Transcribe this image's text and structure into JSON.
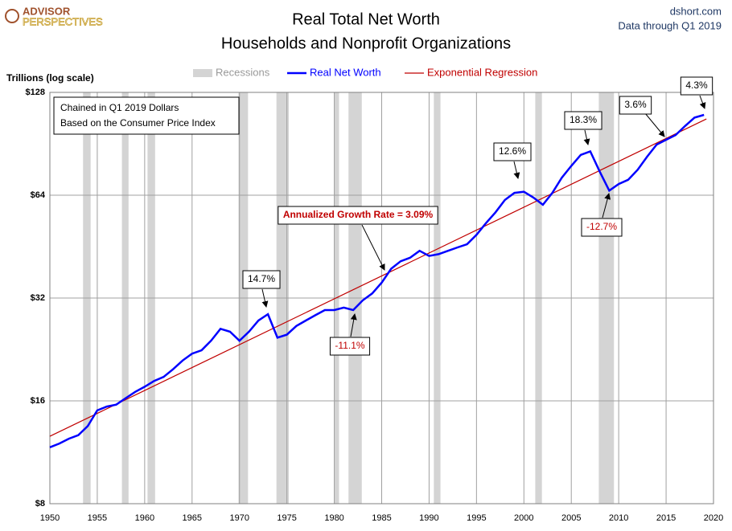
{
  "chart_data": {
    "type": "line",
    "logo": {
      "top": "ADVISOR",
      "bottom": "PERSPECTIVES"
    },
    "source": "dshort.com",
    "data_note": "Data through Q1 2019",
    "title": "Real Total Net Worth",
    "subtitle": "Households and Nonprofit Organizations",
    "y_label": "Trillions (log scale)",
    "note": [
      "Chained in Q1 2019  Dollars",
      "Based on the Consumer Price Index"
    ],
    "log_scale": true,
    "grid": true,
    "xlim": [
      1950,
      2020
    ],
    "xticks": [
      1950,
      1955,
      1960,
      1965,
      1970,
      1975,
      1980,
      1985,
      1990,
      1995,
      2000,
      2005,
      2010,
      2015,
      2020
    ],
    "ylim": [
      8,
      128
    ],
    "yticks": [
      {
        "value": 8,
        "label": "$8"
      },
      {
        "value": 16,
        "label": "$16"
      },
      {
        "value": 32,
        "label": "$32"
      },
      {
        "value": 64,
        "label": "$64"
      },
      {
        "value": 128,
        "label": "$128"
      }
    ],
    "recessions": {
      "name": "Recessions",
      "color": "#d4d4d4",
      "periods": [
        [
          1953.5,
          1954.3
        ],
        [
          1957.6,
          1958.3
        ],
        [
          1960.3,
          1961.1
        ],
        [
          1969.9,
          1970.9
        ],
        [
          1973.9,
          1975.2
        ],
        [
          1980.0,
          1980.5
        ],
        [
          1981.5,
          1982.9
        ],
        [
          1990.5,
          1991.2
        ],
        [
          2001.2,
          2001.9
        ],
        [
          2007.9,
          2009.5
        ]
      ]
    },
    "series": [
      {
        "name": "Real Net Worth",
        "color": "#0000ff",
        "x": [
          1950,
          1951,
          1952,
          1953,
          1954,
          1955,
          1956,
          1957,
          1958,
          1959,
          1960,
          1961,
          1962,
          1963,
          1964,
          1965,
          1966,
          1967,
          1968,
          1969,
          1970,
          1971,
          1972,
          1973,
          1974,
          1975,
          1976,
          1977,
          1978,
          1979,
          1980,
          1981,
          1982,
          1983,
          1984,
          1985,
          1986,
          1987,
          1988,
          1989,
          1990,
          1991,
          1992,
          1993,
          1994,
          1995,
          1996,
          1997,
          1998,
          1999,
          2000,
          2001,
          2002,
          2003,
          2004,
          2005,
          2006,
          2007,
          2008,
          2009,
          2010,
          2011,
          2012,
          2013,
          2014,
          2015,
          2016,
          2017,
          2018,
          2019
        ],
        "values": [
          11.7,
          12.0,
          12.4,
          12.7,
          13.5,
          15.0,
          15.4,
          15.6,
          16.3,
          17.0,
          17.6,
          18.3,
          18.8,
          19.8,
          21.0,
          22.0,
          22.5,
          24.0,
          26.0,
          25.5,
          24.0,
          25.5,
          27.5,
          28.7,
          24.5,
          25.0,
          26.5,
          27.5,
          28.5,
          29.5,
          29.5,
          30.0,
          29.5,
          31.5,
          33.0,
          35.5,
          39.0,
          41.0,
          42.0,
          44.0,
          42.5,
          43.0,
          44.0,
          45.0,
          46.0,
          49.0,
          53.0,
          57.0,
          62.0,
          65.0,
          65.5,
          63.0,
          60.0,
          65.0,
          72.0,
          78.0,
          84.0,
          86.0,
          75.0,
          66.0,
          69.0,
          71.0,
          76.0,
          83.0,
          90.0,
          93.0,
          96.0,
          102.0,
          108.0,
          110.0
        ]
      },
      {
        "name": "Exponential Regression",
        "color": "#c00000",
        "x": [
          1950,
          2019.25
        ],
        "values": [
          12.6,
          107
        ]
      }
    ],
    "annotations": [
      {
        "text": "14.7%",
        "color": "#000000"
      },
      {
        "text": "-11.1%",
        "color": "#c00000"
      },
      {
        "text": "Annualized Growth Rate = 3.09%",
        "color": "#c00000"
      },
      {
        "text": "12.6%",
        "color": "#000000"
      },
      {
        "text": "18.3%",
        "color": "#000000"
      },
      {
        "text": "-12.7%",
        "color": "#c00000"
      },
      {
        "text": "3.6%",
        "color": "#000000"
      },
      {
        "text": "4.3%",
        "color": "#000000"
      }
    ]
  }
}
